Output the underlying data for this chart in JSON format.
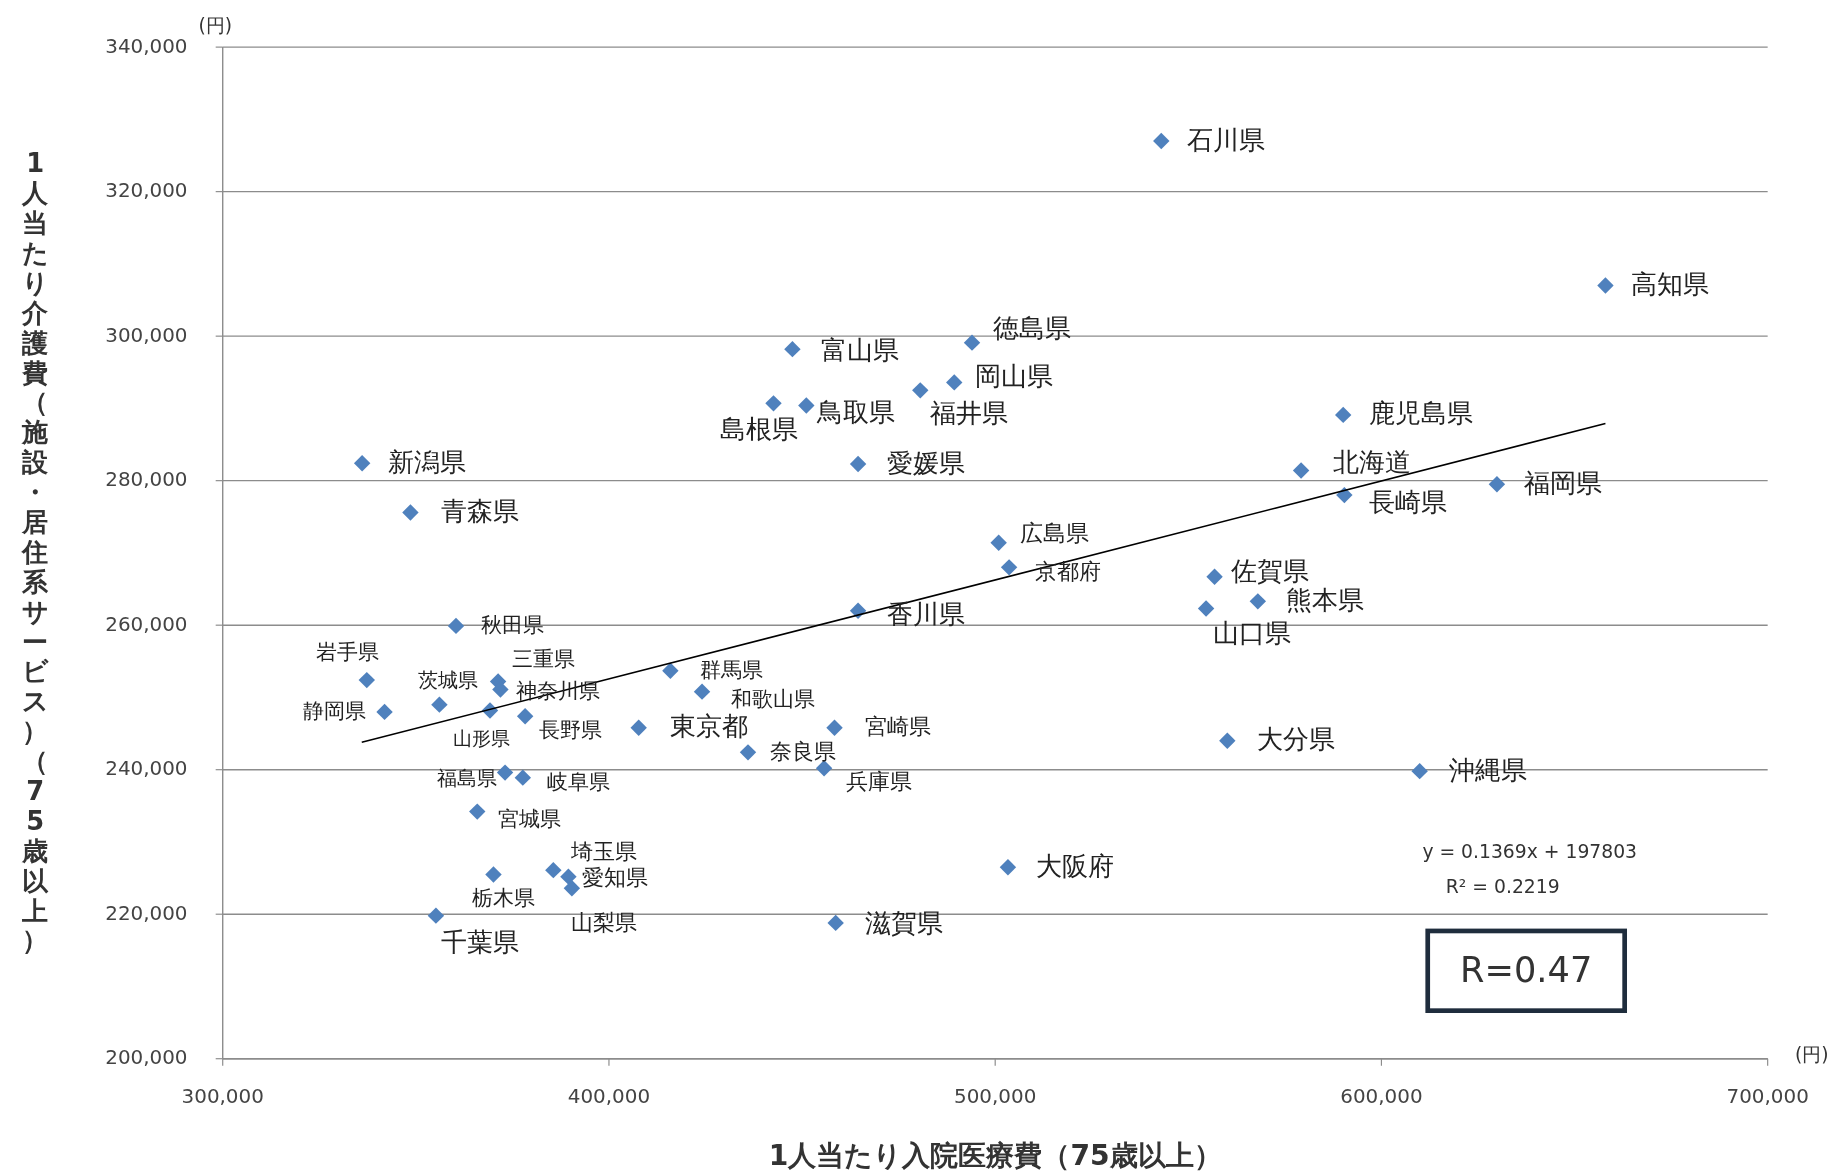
{
  "chart_data": {
    "type": "scatter",
    "xlabel": "1人当たり入院医療費（75歳以上）",
    "ylabel": "1人当たり介護費（施設・居住系サービス）（75歳以上）",
    "xlim": [
      300000,
      700000
    ],
    "xticks": [
      {
        "value": 300000,
        "label": "300,000"
      },
      {
        "value": 400000,
        "label": "400,000"
      },
      {
        "value": 500000,
        "label": "500,000"
      },
      {
        "value": 600000,
        "label": "600,000"
      },
      {
        "value": 700000,
        "label": "700,000"
      }
    ],
    "ylim": [
      200000,
      340000
    ],
    "yticks": [
      {
        "value": 200000,
        "label": "200,000"
      },
      {
        "value": 220000,
        "label": "220,000"
      },
      {
        "value": 240000,
        "label": "240,000"
      },
      {
        "value": 260000,
        "label": "260,000"
      },
      {
        "value": 280000,
        "label": "280,000"
      },
      {
        "value": 300000,
        "label": "300,000"
      },
      {
        "value": 320000,
        "label": "320,000"
      },
      {
        "value": 340000,
        "label": "340,000"
      }
    ],
    "grid": "y",
    "series": [
      {
        "marker": "diamond",
        "color": "#4f81bd",
        "x": [
          543000,
          658000,
          494000,
          447500,
          489400,
          480600,
          442600,
          451100,
          590100,
          336100,
          464500,
          579200,
          629900,
          590400,
          348600,
          500900,
          503600,
          556800,
          568000,
          554600,
          464500,
          360400,
          337300,
          371300,
          371900,
          415900,
          424100,
          356100,
          369200,
          341900,
          378300,
          407700,
          458400,
          560100,
          436000,
          455700,
          609900,
          373100,
          377700,
          365900,
          503300,
          385600,
          370100,
          389500,
          390400,
          355200,
          458700
        ],
        "values": [
          327000,
          307000,
          299100,
          298200,
          293600,
          292500,
          290700,
          290400,
          289100,
          282400,
          282300,
          281400,
          279500,
          278000,
          275600,
          271400,
          268000,
          266700,
          263300,
          262300,
          262000,
          259900,
          252400,
          252200,
          251100,
          253700,
          250800,
          249000,
          248200,
          248000,
          247400,
          245800,
          245800,
          244000,
          242400,
          240200,
          239800,
          239600,
          238900,
          234200,
          226500,
          226100,
          225500,
          225200,
          223600,
          219800,
          218800
        ]
      },
      {
        "type": "line",
        "color": "#000000",
        "x": [
          336000,
          658000
        ],
        "values": [
          243800,
          287900
        ]
      }
    ],
    "annotations": [
      {
        "text": "石川県",
        "x": 543000,
        "y": 327000
      },
      {
        "text": "高知県",
        "x": 658000,
        "y": 307000
      },
      {
        "text": "徳島県",
        "x": 494000,
        "y": 299100
      },
      {
        "text": "富山県",
        "x": 447500,
        "y": 298200
      },
      {
        "text": "岡山県",
        "x": 489400,
        "y": 293600
      },
      {
        "text": "福井県",
        "x": 480600,
        "y": 292500
      },
      {
        "text": "島根県",
        "x": 442600,
        "y": 290700
      },
      {
        "text": "鳥取県",
        "x": 451100,
        "y": 290400
      },
      {
        "text": "鹿児島県",
        "x": 590100,
        "y": 289100
      },
      {
        "text": "新潟県",
        "x": 336100,
        "y": 282400
      },
      {
        "text": "愛媛県",
        "x": 464500,
        "y": 282300
      },
      {
        "text": "北海道",
        "x": 579200,
        "y": 281400
      },
      {
        "text": "福岡県",
        "x": 629900,
        "y": 279500
      },
      {
        "text": "長崎県",
        "x": 590400,
        "y": 278000
      },
      {
        "text": "青森県",
        "x": 348600,
        "y": 275600
      },
      {
        "text": "広島県",
        "x": 500900,
        "y": 271400
      },
      {
        "text": "京都府",
        "x": 503600,
        "y": 268000
      },
      {
        "text": "佐賀県",
        "x": 556800,
        "y": 266700
      },
      {
        "text": "熊本県",
        "x": 568000,
        "y": 263300
      },
      {
        "text": "山口県",
        "x": 554600,
        "y": 262300
      },
      {
        "text": "香川県",
        "x": 464500,
        "y": 262000
      },
      {
        "text": "秋田県",
        "x": 360400,
        "y": 259900
      },
      {
        "text": "岩手県",
        "x": 337300,
        "y": 252400
      },
      {
        "text": "三重県",
        "x": 371300,
        "y": 252200
      },
      {
        "text": "神奈川県",
        "x": 371900,
        "y": 251100
      },
      {
        "text": "群馬県",
        "x": 415900,
        "y": 253700
      },
      {
        "text": "和歌山県",
        "x": 424100,
        "y": 250800
      },
      {
        "text": "茨城県",
        "x": 356100,
        "y": 249000
      },
      {
        "text": "山形県",
        "x": 369200,
        "y": 248200
      },
      {
        "text": "静岡県",
        "x": 341900,
        "y": 248000
      },
      {
        "text": "長野県",
        "x": 378300,
        "y": 247400
      },
      {
        "text": "東京都",
        "x": 407700,
        "y": 245800
      },
      {
        "text": "宮崎県",
        "x": 458400,
        "y": 245800
      },
      {
        "text": "大分県",
        "x": 560100,
        "y": 244000
      },
      {
        "text": "奈良県",
        "x": 436000,
        "y": 242400
      },
      {
        "text": "兵庫県",
        "x": 455700,
        "y": 240200
      },
      {
        "text": "沖縄県",
        "x": 609900,
        "y": 239800
      },
      {
        "text": "福島県",
        "x": 373100,
        "y": 239600
      },
      {
        "text": "岐阜県",
        "x": 377700,
        "y": 238900
      },
      {
        "text": "宮城県",
        "x": 365900,
        "y": 234200
      },
      {
        "text": "大阪府",
        "x": 503300,
        "y": 226500
      },
      {
        "text": "埼玉県",
        "x": 385600,
        "y": 226100
      },
      {
        "text": "栃木県",
        "x": 370100,
        "y": 225500
      },
      {
        "text": "愛知県",
        "x": 389500,
        "y": 225200
      },
      {
        "text": "山梨県",
        "x": 390400,
        "y": 223600
      },
      {
        "text": "千葉県",
        "x": 355200,
        "y": 219800
      },
      {
        "text": "滋賀県",
        "x": 458700,
        "y": 218800
      },
      "(円)",
      "(円)",
      "y = 0.1369x + 197803",
      "R² = 0.2219",
      "R=0.47"
    ]
  }
}
